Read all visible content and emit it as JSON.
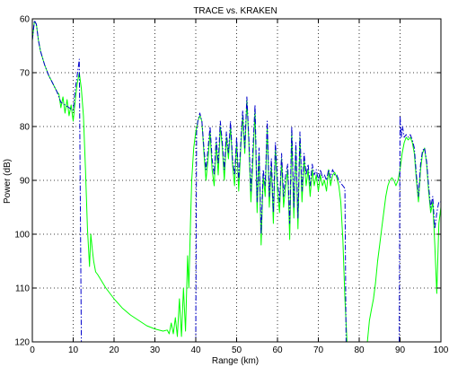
{
  "chart_data": {
    "type": "line",
    "title": "TRACE vs. KRAKEN",
    "xlabel": "Range (km)",
    "ylabel": "Power (dB)",
    "xlim": [
      0,
      100
    ],
    "ylim": [
      60,
      120
    ],
    "y_reversed": true,
    "grid": true,
    "x_ticks": [
      0,
      10,
      20,
      30,
      40,
      50,
      60,
      70,
      80,
      90,
      100
    ],
    "y_ticks": [
      60,
      70,
      80,
      90,
      100,
      110,
      120
    ],
    "series": [
      {
        "style": "solid",
        "color": "#00ff00",
        "points": [
          [
            0,
            64
          ],
          [
            0.5,
            60.5
          ],
          [
            1,
            61
          ],
          [
            1.5,
            64
          ],
          [
            2,
            66
          ],
          [
            3,
            68.5
          ],
          [
            4,
            70.5
          ],
          [
            5,
            72
          ],
          [
            6,
            73.5
          ],
          [
            6.5,
            74
          ],
          [
            7,
            76.5
          ],
          [
            7.5,
            74.5
          ],
          [
            8,
            77.5
          ],
          [
            8.5,
            75
          ],
          [
            9,
            78
          ],
          [
            9.5,
            76
          ],
          [
            10,
            79
          ],
          [
            10.5,
            75
          ],
          [
            11,
            72
          ],
          [
            11.5,
            70
          ],
          [
            12,
            73
          ],
          [
            12.5,
            78
          ],
          [
            13,
            88
          ],
          [
            13.5,
            99
          ],
          [
            14,
            106
          ],
          [
            14.3,
            100
          ],
          [
            14.7,
            103
          ],
          [
            15,
            105
          ],
          [
            15.5,
            107
          ],
          [
            16,
            107.5
          ],
          [
            18,
            110
          ],
          [
            20,
            112
          ],
          [
            22,
            113.7
          ],
          [
            24,
            115
          ],
          [
            26,
            116
          ],
          [
            28,
            117
          ],
          [
            30,
            117.6
          ],
          [
            32,
            118
          ],
          [
            33,
            117.8
          ],
          [
            33.5,
            118.5
          ],
          [
            34,
            116.5
          ],
          [
            34.5,
            118.5
          ],
          [
            35,
            115.5
          ],
          [
            35.5,
            119
          ],
          [
            36,
            112
          ],
          [
            36.5,
            119
          ],
          [
            37,
            110
          ],
          [
            37.5,
            118
          ],
          [
            38,
            104
          ],
          [
            38.3,
            110
          ],
          [
            38.7,
            98
          ],
          [
            39,
            90
          ],
          [
            39.5,
            84
          ],
          [
            40,
            81
          ],
          [
            40.5,
            79
          ],
          [
            41,
            78
          ],
          [
            41.5,
            79
          ],
          [
            42,
            85
          ],
          [
            42.5,
            90
          ],
          [
            43,
            86
          ],
          [
            43.5,
            81
          ],
          [
            44,
            88
          ],
          [
            44.5,
            91
          ],
          [
            45,
            83
          ],
          [
            45.5,
            89
          ],
          [
            46,
            80
          ],
          [
            46.5,
            84
          ],
          [
            47,
            90
          ],
          [
            47.5,
            82
          ],
          [
            48,
            86
          ],
          [
            48.5,
            80
          ],
          [
            49,
            87
          ],
          [
            49.5,
            91
          ],
          [
            50,
            83
          ],
          [
            50.5,
            92
          ],
          [
            51,
            84
          ],
          [
            51.5,
            78
          ],
          [
            52,
            85
          ],
          [
            52.5,
            75
          ],
          [
            53,
            83
          ],
          [
            53.5,
            94
          ],
          [
            54,
            86
          ],
          [
            54.5,
            77
          ],
          [
            55,
            96
          ],
          [
            55.5,
            85
          ],
          [
            56,
            102
          ],
          [
            56.5,
            89
          ],
          [
            57,
            93
          ],
          [
            57.5,
            80
          ],
          [
            58,
            95
          ],
          [
            58.5,
            87
          ],
          [
            59,
            98
          ],
          [
            59.5,
            84
          ],
          [
            60,
            92
          ],
          [
            60.5,
            96
          ],
          [
            61,
            86
          ],
          [
            61.5,
            95
          ],
          [
            62,
            91
          ],
          [
            62.5,
            88
          ],
          [
            63,
            101
          ],
          [
            63.5,
            81
          ],
          [
            64,
            97
          ],
          [
            64.5,
            84
          ],
          [
            65,
            99
          ],
          [
            65.5,
            82
          ],
          [
            66,
            94
          ],
          [
            66.5,
            86
          ],
          [
            67,
            91
          ],
          [
            67.5,
            88
          ],
          [
            68,
            93
          ],
          [
            68.5,
            88
          ],
          [
            69,
            91
          ],
          [
            69.5,
            89
          ],
          [
            70,
            92
          ],
          [
            70.5,
            89
          ],
          [
            71,
            91
          ],
          [
            71.5,
            90
          ],
          [
            72,
            92
          ],
          [
            72.5,
            88
          ],
          [
            73,
            91
          ],
          [
            73.5,
            89
          ],
          [
            74,
            88.5
          ],
          [
            74.5,
            89.5
          ],
          [
            75,
            91
          ],
          [
            75.5,
            94
          ],
          [
            76,
            101
          ],
          [
            76.5,
            112
          ],
          [
            77,
            120
          ],
          null,
          [
            82,
            120
          ],
          [
            82.5,
            116
          ],
          [
            83,
            114
          ],
          [
            83.5,
            112
          ],
          [
            84,
            109
          ],
          [
            84.5,
            105
          ],
          [
            85,
            102
          ],
          [
            85.5,
            99
          ],
          [
            86,
            96
          ],
          [
            86.5,
            93
          ],
          [
            87,
            91
          ],
          [
            87.5,
            90
          ],
          [
            88,
            89.5
          ],
          [
            88.5,
            90
          ],
          [
            89,
            91
          ],
          [
            89.5,
            90
          ],
          [
            90,
            88
          ],
          [
            90.5,
            85
          ],
          [
            91,
            83
          ],
          [
            91.5,
            82
          ],
          [
            92,
            82.5
          ],
          [
            92.5,
            82
          ],
          [
            93,
            83
          ],
          [
            93.5,
            85
          ],
          [
            94,
            90
          ],
          [
            94.5,
            94
          ],
          [
            95,
            88
          ],
          [
            95.5,
            85
          ],
          [
            96,
            84
          ],
          [
            96.5,
            87
          ],
          [
            97,
            92
          ],
          [
            97.5,
            96
          ],
          [
            98,
            94
          ],
          [
            98.5,
            102
          ],
          [
            99,
            111
          ],
          [
            99.5,
            98
          ],
          [
            100,
            95
          ]
        ]
      },
      {
        "style": "dashdot",
        "color": "#0000cc",
        "points": [
          [
            0,
            64
          ],
          [
            0.5,
            60.3
          ],
          [
            1,
            61
          ],
          [
            1.5,
            64
          ],
          [
            2,
            66
          ],
          [
            3,
            68.5
          ],
          [
            4,
            70.5
          ],
          [
            5,
            72
          ],
          [
            6,
            73.5
          ],
          [
            7,
            75.5
          ],
          [
            8,
            76
          ],
          [
            9,
            76.5
          ],
          [
            10,
            77
          ],
          [
            10.5,
            73
          ],
          [
            11,
            70.5
          ],
          [
            11.5,
            67.5
          ],
          [
            11.8,
            100
          ],
          [
            12,
            120
          ],
          null,
          [
            40,
            120
          ],
          [
            40.2,
            81
          ],
          [
            40.5,
            79
          ],
          [
            41,
            77.5
          ],
          [
            41.5,
            79
          ],
          [
            42,
            84
          ],
          [
            42.5,
            88
          ],
          [
            43,
            84
          ],
          [
            43.5,
            80
          ],
          [
            44,
            86
          ],
          [
            44.5,
            89
          ],
          [
            45,
            82
          ],
          [
            45.5,
            87
          ],
          [
            46,
            79
          ],
          [
            46.5,
            83
          ],
          [
            47,
            88
          ],
          [
            47.5,
            81
          ],
          [
            48,
            85
          ],
          [
            48.5,
            79
          ],
          [
            49,
            86
          ],
          [
            49.5,
            89
          ],
          [
            50,
            82
          ],
          [
            50.5,
            90
          ],
          [
            51,
            83
          ],
          [
            51.5,
            77
          ],
          [
            52,
            84
          ],
          [
            52.5,
            74.5
          ],
          [
            53,
            82
          ],
          [
            53.5,
            92
          ],
          [
            54,
            84
          ],
          [
            54.5,
            76
          ],
          [
            55,
            94
          ],
          [
            55.5,
            84
          ],
          [
            56,
            100
          ],
          [
            56.5,
            88
          ],
          [
            57,
            91
          ],
          [
            57.5,
            79
          ],
          [
            58,
            93
          ],
          [
            58.5,
            86
          ],
          [
            59,
            96
          ],
          [
            59.5,
            83
          ],
          [
            60,
            90
          ],
          [
            60.5,
            94
          ],
          [
            61,
            85
          ],
          [
            61.5,
            93
          ],
          [
            62,
            89
          ],
          [
            62.5,
            87
          ],
          [
            63,
            98
          ],
          [
            63.5,
            80
          ],
          [
            64,
            95
          ],
          [
            64.5,
            83
          ],
          [
            65,
            97
          ],
          [
            65.5,
            81
          ],
          [
            66,
            92
          ],
          [
            66.5,
            85
          ],
          [
            67,
            89
          ],
          [
            67.5,
            87
          ],
          [
            68,
            91
          ],
          [
            68.5,
            87
          ],
          [
            69,
            89
          ],
          [
            69.5,
            88
          ],
          [
            70,
            90
          ],
          [
            70.5,
            88
          ],
          [
            71,
            89.5
          ],
          [
            71.5,
            89
          ],
          [
            72,
            90
          ],
          [
            72.5,
            88
          ],
          [
            73,
            89.5
          ],
          [
            73.5,
            88
          ],
          [
            74,
            89
          ],
          [
            74.5,
            89
          ],
          [
            75,
            90
          ],
          [
            75.5,
            90.5
          ],
          [
            76,
            91
          ],
          [
            76.5,
            91.5
          ],
          [
            76.8,
            120
          ],
          null,
          [
            89.8,
            120
          ],
          [
            90,
            78
          ],
          [
            90.3,
            82
          ],
          [
            90.6,
            80
          ],
          [
            91,
            82
          ],
          [
            91.5,
            81.5
          ],
          [
            92,
            82
          ],
          [
            92.5,
            81.5
          ],
          [
            93,
            82.5
          ],
          [
            93.5,
            84
          ],
          [
            94,
            89
          ],
          [
            94.5,
            93
          ],
          [
            95,
            87
          ],
          [
            95.5,
            84.5
          ],
          [
            96,
            84
          ],
          [
            96.5,
            86.5
          ],
          [
            97,
            91
          ],
          [
            97.5,
            95
          ],
          [
            98,
            93
          ],
          [
            98.5,
            99
          ],
          [
            99,
            96
          ],
          [
            99.5,
            94
          ],
          [
            100,
            94
          ]
        ]
      }
    ]
  }
}
